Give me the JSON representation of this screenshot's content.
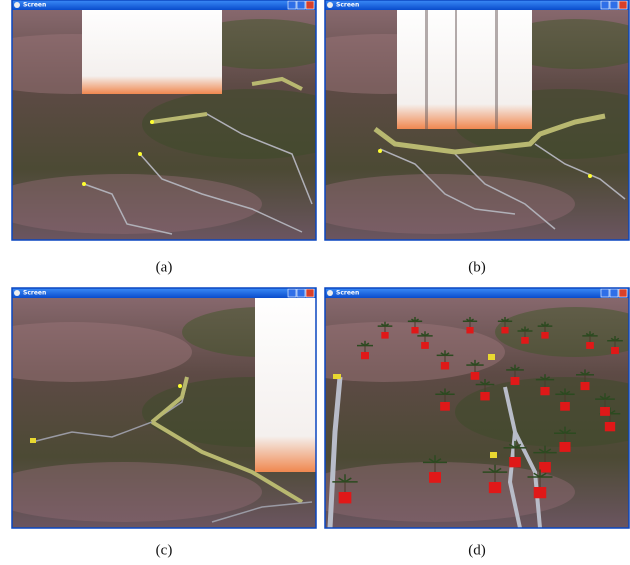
{
  "panels": [
    {
      "window_title": "Screen",
      "caption": "(a)"
    },
    {
      "window_title": "Screen",
      "caption": "(b)"
    },
    {
      "window_title": "Screen",
      "caption": "(c)"
    },
    {
      "window_title": "Screen",
      "caption": "(d)"
    }
  ]
}
